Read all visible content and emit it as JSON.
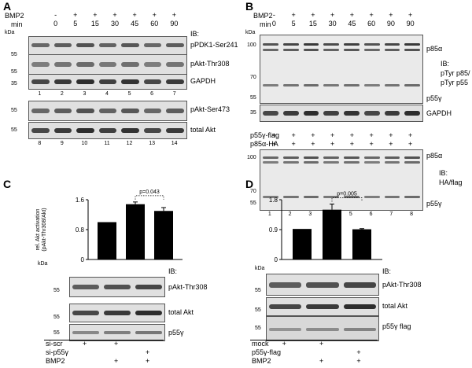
{
  "panels": {
    "A": {
      "letter": "A",
      "bmp2_label": "BMP2",
      "min_label": "min",
      "bmp2_signs": [
        "-",
        "+",
        "+",
        "+",
        "+",
        "+",
        "+"
      ],
      "times": [
        "0",
        "5",
        "15",
        "30",
        "45",
        "60",
        "90"
      ],
      "kda": "kDa",
      "ib": "IB:",
      "blot_labels": [
        "pPDK1-Ser241",
        "pAkt-Thr308",
        "GAPDH",
        "pAkt-Ser473",
        "total Akt"
      ],
      "markers_top": [
        "55",
        "55",
        "35"
      ],
      "markers_bottom": [
        "55",
        "55"
      ],
      "lanes_top": [
        "1",
        "2",
        "3",
        "4",
        "5",
        "6",
        "7"
      ],
      "lanes_bottom": [
        "8",
        "9",
        "10",
        "11",
        "12",
        "13",
        "14"
      ]
    },
    "B": {
      "letter": "B",
      "bmp2_label": "BMP2",
      "min_label": "min",
      "bmp2_signs": [
        "-",
        "+",
        "+",
        "+",
        "+",
        "+",
        "+",
        "+"
      ],
      "times": [
        "0",
        "5",
        "15",
        "30",
        "45",
        "60",
        "90",
        "90"
      ],
      "kda": "kDa",
      "markers_top": [
        "100",
        "70",
        "55"
      ],
      "marker_gapdh": "35",
      "markers_bottom": [
        "100",
        "70",
        "55"
      ],
      "p85a": "p85α",
      "p55g": "p55γ",
      "ib_top": [
        "IB:",
        "pTyr p85/",
        "pTyr p55"
      ],
      "gapdh": "GAPDH",
      "ib_bottom": [
        "IB:",
        "HA/flag"
      ],
      "p55flag_label": "p55γ-flag",
      "p85ha_label": "p85α-HA",
      "plus": "+",
      "lanes": [
        "1",
        "2",
        "3",
        "4",
        "5",
        "6",
        "7",
        "8"
      ]
    },
    "C": {
      "letter": "C",
      "ylabel": [
        "rel. Akt activation",
        "(pAkt-Thr308/Akt)"
      ],
      "yticks": [
        "1.6",
        "0.8",
        "0"
      ],
      "pvalue": "p=0.043",
      "kda": "kDa",
      "ib": "IB:",
      "blot_labels": [
        "pAkt-Thr308",
        "total Akt",
        "p55γ"
      ],
      "markers": [
        "55",
        "55",
        "55"
      ],
      "conditions": [
        {
          "label": "si-scr",
          "signs": [
            "+",
            "+",
            ""
          ]
        },
        {
          "label": "si-p55γ",
          "signs": [
            "",
            "",
            "+"
          ]
        },
        {
          "label": "BMP2",
          "signs": [
            "",
            "+",
            "+"
          ]
        }
      ]
    },
    "D": {
      "letter": "D",
      "ylabel": [
        "rel. Akt activation",
        "(pAkt-Thr308/Akt)"
      ],
      "yticks": [
        "1.8",
        "0.9",
        "0"
      ],
      "pvalue": "p=0.005",
      "kda": "kDa",
      "ib": "IB:",
      "blot_labels": [
        "pAkt-Thr308",
        "total Akt",
        "p55γ flag"
      ],
      "markers": [
        "55",
        "55",
        "55"
      ],
      "conditions": [
        {
          "label": "mock",
          "signs": [
            "+",
            "+",
            ""
          ]
        },
        {
          "label": "p55γ-flag",
          "signs": [
            "",
            "",
            "+"
          ]
        },
        {
          "label": "BMP2",
          "signs": [
            "",
            "+",
            "+"
          ]
        }
      ]
    }
  },
  "chart_data": [
    {
      "type": "bar",
      "panel": "C",
      "categories": [
        "si-scr",
        "si-scr + BMP2",
        "si-p55γ + BMP2"
      ],
      "values": [
        1.0,
        1.48,
        1.3
      ],
      "errors": [
        0,
        0.06,
        0.09
      ],
      "ylabel": "rel. Akt activation (pAkt-Thr308/Akt)",
      "ylim": [
        0,
        1.6
      ],
      "annotation": "p=0.043"
    },
    {
      "type": "bar",
      "panel": "D",
      "categories": [
        "mock",
        "mock + BMP2",
        "p55γ-flag + BMP2"
      ],
      "values": [
        0.92,
        1.5,
        0.91
      ],
      "errors": [
        0,
        0.17,
        0.02
      ],
      "ylabel": "rel. Akt activation (pAkt-Thr308/Akt)",
      "ylim": [
        0,
        1.8
      ],
      "annotation": "p=0.005"
    }
  ]
}
